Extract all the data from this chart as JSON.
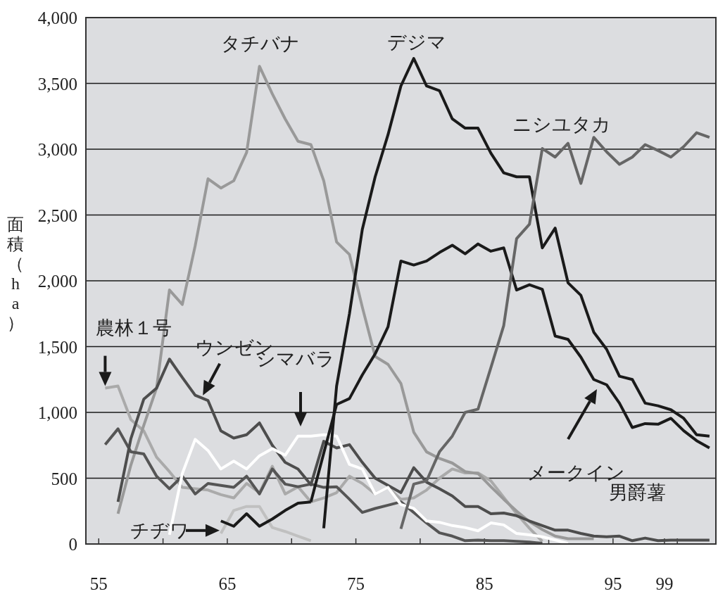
{
  "chart_data": {
    "type": "line",
    "ylabel": "面積（ha）",
    "xlim": [
      54,
      103
    ],
    "ylim": [
      0,
      4000
    ],
    "xticks": [
      55,
      {
        "value": 60,
        "label": null
      },
      65,
      {
        "value": 70,
        "label": null
      },
      75,
      {
        "value": 80,
        "label": null
      },
      85,
      {
        "value": 90,
        "label": null
      },
      95,
      99,
      {
        "value": 100,
        "label": null
      }
    ],
    "yticks": [
      0,
      500,
      {
        "value": 1000,
        "label": "1,000"
      },
      {
        "value": 1500,
        "label": "1,500"
      },
      {
        "value": 2000,
        "label": "2,000"
      },
      {
        "value": 2500,
        "label": "2,500"
      },
      {
        "value": 3000,
        "label": "3,000"
      },
      {
        "value": 3500,
        "label": "3,500"
      },
      {
        "value": 4000,
        "label": "4,000"
      }
    ],
    "grid": "y",
    "series": [
      {
        "color": "#aaaaaa",
        "x": [
          55.5,
          56.5,
          57.5,
          58.5,
          59.5,
          60.5,
          61.5,
          62.5,
          63.5,
          64.5,
          65.5,
          66.5,
          67.5,
          68.5,
          69.5,
          70.5,
          71.5,
          72.5,
          73.5,
          74.5,
          75.5,
          76.5,
          77.5,
          78.5,
          79.5,
          80.5,
          81.5,
          82.5,
          83.5,
          84.5,
          85.5,
          86.5,
          87.5,
          88.5,
          89.5
        ],
        "values": [
          1185,
          1200,
          945,
          860,
          660,
          550,
          430,
          420,
          410,
          375,
          350,
          460,
          390,
          590,
          380,
          435,
          320,
          350,
          390,
          515,
          460,
          380,
          430,
          340,
          350,
          410,
          500,
          570,
          540,
          540,
          480,
          355,
          230,
          120,
          20
        ]
      },
      {
        "color": "#999999",
        "x": [
          56.5,
          57.5,
          58.5,
          59.5,
          60.5,
          61.5,
          62.5,
          63.5,
          64.5,
          65.5,
          66.5,
          67.5,
          68.5,
          69.5,
          70.5,
          71.5,
          72.5,
          73.5,
          74.5,
          75.5,
          76.5,
          77.5,
          78.5,
          79.5,
          80.5,
          81.5,
          82.5,
          83.5,
          84.5,
          85.5,
          86.5,
          87.5,
          88.5,
          89.5,
          90.5,
          91.5,
          92.5,
          93.5
        ],
        "values": [
          230,
          600,
          900,
          1185,
          1930,
          1820,
          2265,
          2775,
          2705,
          2760,
          2975,
          3630,
          3420,
          3230,
          3060,
          3035,
          2760,
          2295,
          2200,
          1800,
          1425,
          1365,
          1220,
          850,
          700,
          650,
          615,
          550,
          535,
          435,
          340,
          250,
          170,
          110,
          60,
          40,
          40,
          40
        ]
      },
      {
        "color": "#c0c0c0",
        "x": [
          64.5,
          65.5,
          66.5,
          67.5,
          68.5,
          69.5,
          70.5,
          71.5
        ],
        "values": [
          80,
          255,
          285,
          285,
          125,
          95,
          60,
          25
        ]
      },
      {
        "color": "#555555",
        "x": [
          55.5,
          56.5,
          57.5,
          58.5,
          59.5,
          60.5,
          61.5,
          62.5,
          63.5,
          64.5,
          65.5,
          66.5,
          67.5,
          68.5,
          69.5,
          70.5,
          71.5,
          72.5,
          73.5,
          74.5,
          75.5,
          76.5,
          77.5,
          78.5,
          79.5,
          80.5,
          81.5,
          82.5,
          83.5,
          84.5,
          85.5,
          86.5,
          87.5,
          88.5,
          89.5
        ],
        "values": [
          755,
          875,
          700,
          685,
          515,
          420,
          515,
          380,
          460,
          445,
          430,
          515,
          380,
          570,
          455,
          435,
          455,
          430,
          435,
          340,
          240,
          270,
          295,
          320,
          240,
          160,
          85,
          60,
          25,
          30,
          25,
          25,
          20,
          15,
          5
        ]
      },
      {
        "color": "#4d4d4d",
        "x": [
          56.5,
          57.5,
          58.5,
          59.5,
          60.5,
          61.5,
          62.5,
          63.5,
          64.5,
          65.5,
          66.5,
          67.5,
          68.5,
          69.5,
          70.5,
          71.5,
          72.5,
          73.5,
          74.5,
          75.5,
          76.5,
          77.5,
          78.5,
          79.5,
          80.5,
          81.5,
          82.5,
          83.5,
          84.5,
          85.5,
          86.5,
          87.5,
          88.5,
          89.5,
          90.5,
          91.5,
          92.5,
          93.5,
          94.5,
          95.5,
          96.5,
          97.5,
          98.5,
          99.5,
          100.5,
          101.5,
          102.5
        ],
        "values": [
          320,
          800,
          1100,
          1185,
          1405,
          1265,
          1130,
          1090,
          860,
          805,
          830,
          920,
          750,
          620,
          570,
          450,
          780,
          730,
          755,
          620,
          500,
          445,
          390,
          580,
          470,
          420,
          365,
          285,
          285,
          230,
          235,
          215,
          175,
          140,
          105,
          105,
          80,
          60,
          55,
          60,
          25,
          45,
          25,
          30,
          30,
          30,
          30
        ]
      },
      {
        "color": "#ffffff",
        "x": [
          60.5,
          61.5,
          62.5,
          63.5,
          64.5,
          65.5,
          66.5,
          67.5,
          68.5,
          69.5,
          70.5,
          71.5,
          72.5,
          73.5,
          74.5,
          75.5,
          76.5,
          77.5,
          78.5,
          79.5,
          80.5,
          81.5,
          82.5,
          83.5,
          84.5,
          85.5,
          86.5,
          87.5,
          88.5,
          89.5,
          90.5,
          91.5
        ],
        "values": [
          70,
          535,
          795,
          710,
          570,
          630,
          570,
          670,
          725,
          675,
          820,
          820,
          830,
          820,
          605,
          570,
          380,
          430,
          300,
          270,
          175,
          165,
          140,
          125,
          100,
          160,
          145,
          80,
          70,
          55,
          30,
          5
        ]
      },
      {
        "color": "#1a1a1a",
        "x": [
          64.5,
          65.5,
          66.5,
          67.5,
          68.5,
          69.5,
          70.5,
          71.5
        ],
        "values": [
          175,
          135,
          230,
          135,
          190,
          255,
          310,
          320
        ]
      },
      {
        "color": "#1a1a1a",
        "x": [
          71.5,
          73.5,
          74.5,
          75.5,
          76.5,
          77.5,
          78.5,
          79.5,
          80.5,
          81.5,
          82.5,
          83.5,
          84.5,
          85.5,
          86.5,
          87.5,
          88.5,
          89.5,
          90.5,
          91.5,
          92.5,
          93.5,
          94.5,
          95.5,
          96.5,
          97.5,
          98.5,
          99.5,
          100.5,
          101.5,
          102.5
        ],
        "values": [
          320,
          1060,
          1105,
          1285,
          1445,
          1650,
          2150,
          2120,
          2150,
          2215,
          2270,
          2205,
          2280,
          2225,
          2250,
          1930,
          1970,
          1935,
          1580,
          1555,
          1420,
          1250,
          1210,
          1070,
          885,
          915,
          910,
          955,
          860,
          785,
          730
        ]
      },
      {
        "color": "#1a1a1a",
        "x": [
          72.5,
          73.5,
          74.5,
          75.5,
          76.5,
          77.5,
          78.5,
          79.5,
          80.5,
          81.5,
          82.5,
          83.5,
          84.5,
          85.5,
          86.5,
          87.5,
          88.5,
          89.5,
          90.5,
          91.5,
          92.5,
          93.5,
          94.5,
          95.5,
          96.5,
          97.5,
          98.5,
          99.5,
          100.5,
          101.5,
          102.5
        ],
        "values": [
          120,
          1200,
          1750,
          2390,
          2790,
          3110,
          3480,
          3690,
          3480,
          3445,
          3230,
          3160,
          3160,
          2970,
          2820,
          2790,
          2790,
          2250,
          2400,
          1985,
          1890,
          1610,
          1480,
          1275,
          1250,
          1070,
          1050,
          1020,
          955,
          830,
          820
        ]
      },
      {
        "color": "#666666",
        "x": [
          78.5,
          79.5,
          80.5,
          81.5,
          82.5,
          83.5,
          84.5,
          85.5,
          86.5,
          87.5,
          88.5,
          89.5,
          90.5,
          91.5,
          92.5,
          93.5,
          94.5,
          95.5,
          96.5,
          97.5,
          98.5,
          99.5,
          100.5,
          101.5,
          102.5
        ],
        "values": [
          115,
          455,
          480,
          700,
          820,
          1000,
          1025,
          1340,
          1660,
          2320,
          2430,
          3005,
          2940,
          3045,
          2740,
          3090,
          2980,
          2885,
          2940,
          3035,
          2990,
          2940,
          3020,
          3125,
          3090
        ]
      }
    ],
    "annotations": [
      {
        "text": "タチバナ",
        "x": 67.5,
        "y": 3630
      },
      {
        "text": "デジマ",
        "x": 79.5,
        "y": 3690
      },
      {
        "text": "ニシユタカ",
        "x": 89.5,
        "y": 3005
      },
      {
        "text": "農林１号",
        "x": 55.5,
        "y": 1200
      },
      {
        "text": "ウンゼン",
        "x": 63.1,
        "y": 1130
      },
      "シマバラ",
      "メークイン",
      {
        "text": "チヂワ",
        "x": 64.4,
        "y": 140
      },
      {
        "text": "男爵薯",
        "x": 95.5,
        "y": 60
      }
    ]
  }
}
